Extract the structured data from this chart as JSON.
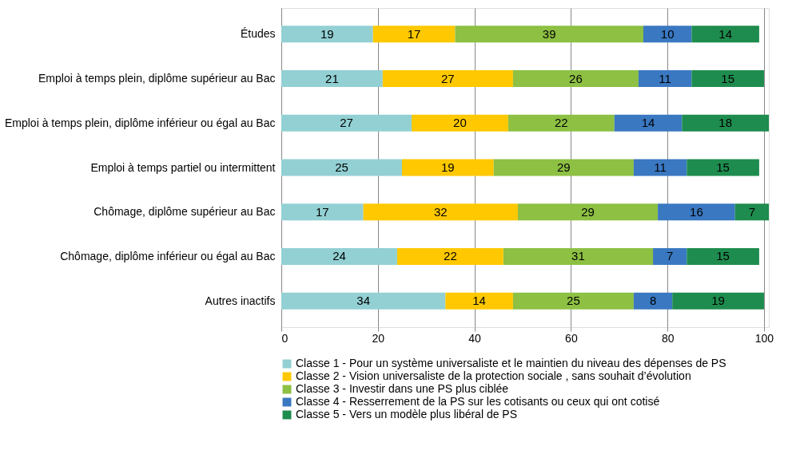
{
  "chart_data": {
    "type": "bar",
    "orientation": "horizontal",
    "stacked": true,
    "data_labels": true,
    "grid": "x",
    "legend": "bottom",
    "categories": [
      "Études",
      "Emploi à temps plein, diplôme supérieur au Bac",
      "Emploi à temps plein, diplôme inférieur ou égal au Bac",
      "Emploi à temps partiel ou intermittent",
      "Chômage, diplôme supérieur au Bac",
      "Chômage, diplôme inférieur ou égal au Bac",
      "Autres inactifs"
    ],
    "xlim": [
      0,
      101
    ],
    "xticks": [
      0,
      20,
      40,
      60,
      80,
      100
    ],
    "series": [
      {
        "name": "Classe 1 - Pour un système universaliste et le maintien du niveau des dépenses de PS",
        "color": "#92d0d3",
        "values": [
          19,
          21,
          27,
          25,
          17,
          24,
          34
        ]
      },
      {
        "name": "Classe 2 - Vision universaliste de la protection sociale , sans souhait d’évolution",
        "color": "#ffc800",
        "values": [
          17,
          27,
          20,
          19,
          32,
          22,
          14
        ]
      },
      {
        "name": "Classe 3 - Investir dans une PS plus ciblée",
        "color": "#8dc043",
        "values": [
          39,
          26,
          22,
          29,
          29,
          31,
          25
        ]
      },
      {
        "name": "Classe 4 - Resserrement de la PS sur les cotisants ou ceux qui ont cotisé",
        "color": "#3a78c1",
        "values": [
          10,
          11,
          14,
          11,
          16,
          7,
          8
        ]
      },
      {
        "name": "Classe 5 - Vers un modèle plus libéral de PS",
        "color": "#1e8c4e",
        "values": [
          14,
          15,
          18,
          15,
          7,
          15,
          19
        ]
      }
    ]
  }
}
